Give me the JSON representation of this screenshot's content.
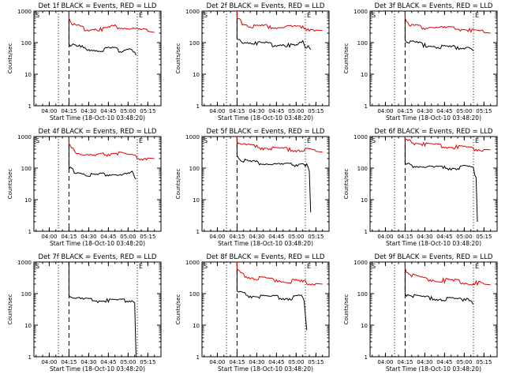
{
  "figure": {
    "xaxis_label": "Start Time (18-Oct-10 03:48:20)",
    "yaxis_label": "Counts/sec",
    "x_tick_labels": [
      "04:00",
      "04:15",
      "04:30",
      "04:45",
      "05:00",
      "05:15"
    ],
    "y_tick_labels": [
      "1",
      "10",
      "100",
      "1000"
    ],
    "marker_start": "S",
    "marker_end": "E",
    "colors": {
      "events": "#000000",
      "lld": "#e00000",
      "axes": "#000000"
    }
  },
  "chart_data": [
    {
      "type": "line",
      "title": "Det 1f BLACK = Events, RED = LLD",
      "ylog": true,
      "ylim": [
        1,
        1000
      ],
      "xlim": [
        "03:48:20",
        "05:25:00"
      ],
      "dotted_lines_x": [
        "04:07",
        "05:07"
      ],
      "dashed_line_x": "04:15",
      "series": [
        {
          "name": "Events",
          "color": "#000000",
          "x": [
            "04:15",
            "04:15",
            "04:16",
            "04:20",
            "04:25",
            "04:30",
            "04:35",
            "04:40",
            "04:45",
            "04:50",
            "04:55",
            "05:00",
            "05:03",
            "05:05",
            "05:06"
          ],
          "y": [
            1000,
            90,
            85,
            78,
            70,
            65,
            60,
            58,
            62,
            60,
            58,
            65,
            70,
            50,
            40
          ]
        },
        {
          "name": "LLD",
          "color": "#e00000",
          "x": [
            "04:15",
            "04:15",
            "04:16",
            "04:18",
            "04:20",
            "04:25",
            "04:30",
            "04:35",
            "04:40",
            "04:45",
            "04:50",
            "04:55",
            "05:00",
            "05:05",
            "05:10",
            "05:15",
            "05:20"
          ],
          "y": [
            1000,
            600,
            500,
            400,
            330,
            290,
            260,
            280,
            270,
            300,
            320,
            300,
            280,
            270,
            250,
            230,
            210
          ]
        }
      ]
    },
    {
      "type": "line",
      "title": "Det 2f BLACK = Events, RED = LLD",
      "ylog": true,
      "ylim": [
        1,
        1000
      ],
      "xlim": [
        "03:48:20",
        "05:25:00"
      ],
      "dotted_lines_x": [
        "04:07",
        "05:07"
      ],
      "dashed_line_x": "04:15",
      "series": [
        {
          "name": "Events",
          "color": "#000000",
          "x": [
            "04:15",
            "04:15",
            "04:16",
            "04:20",
            "04:25",
            "04:30",
            "04:35",
            "04:40",
            "04:45",
            "04:50",
            "04:55",
            "05:00",
            "05:05",
            "05:07",
            "05:09",
            "05:11"
          ],
          "y": [
            1000,
            130,
            125,
            110,
            105,
            95,
            90,
            88,
            85,
            90,
            85,
            80,
            100,
            70,
            80,
            60
          ]
        },
        {
          "name": "LLD",
          "color": "#e00000",
          "x": [
            "04:15",
            "04:15",
            "04:16",
            "04:18",
            "04:20",
            "04:25",
            "04:30",
            "04:35",
            "04:40",
            "04:45",
            "04:50",
            "04:55",
            "05:00",
            "05:05",
            "05:10",
            "05:15",
            "05:20"
          ],
          "y": [
            1000,
            600,
            520,
            450,
            400,
            350,
            330,
            340,
            320,
            300,
            310,
            320,
            300,
            290,
            270,
            250,
            240
          ]
        }
      ]
    },
    {
      "type": "line",
      "title": "Det 3f BLACK = Events, RED = LLD",
      "ylog": true,
      "ylim": [
        1,
        1000
      ],
      "xlim": [
        "03:48:20",
        "05:25:00"
      ],
      "dotted_lines_x": [
        "04:07",
        "05:07"
      ],
      "dashed_line_x": "04:15",
      "series": [
        {
          "name": "Events",
          "color": "#000000",
          "x": [
            "04:15",
            "04:15",
            "04:16",
            "04:20",
            "04:25",
            "04:30",
            "04:35",
            "04:40",
            "04:45",
            "04:50",
            "04:55",
            "05:00",
            "05:03",
            "05:05",
            "05:07"
          ],
          "y": [
            1000,
            120,
            115,
            100,
            90,
            85,
            80,
            78,
            75,
            72,
            70,
            68,
            75,
            65,
            55
          ]
        },
        {
          "name": "LLD",
          "color": "#e00000",
          "x": [
            "04:15",
            "04:15",
            "04:16",
            "04:18",
            "04:20",
            "04:25",
            "04:30",
            "04:35",
            "04:40",
            "04:45",
            "04:50",
            "04:55",
            "05:00",
            "05:05",
            "05:10",
            "05:15",
            "05:20"
          ],
          "y": [
            1000,
            600,
            500,
            420,
            360,
            320,
            300,
            310,
            300,
            290,
            280,
            270,
            260,
            240,
            220,
            210,
            200
          ]
        }
      ]
    },
    {
      "type": "line",
      "title": "Det 4f BLACK = Events, RED = LLD",
      "ylog": true,
      "ylim": [
        1,
        1000
      ],
      "xlim": [
        "03:48:20",
        "05:25:00"
      ],
      "dotted_lines_x": [
        "04:07",
        "05:07"
      ],
      "dashed_line_x": "04:15",
      "series": [
        {
          "name": "Events",
          "color": "#000000",
          "x": [
            "04:15",
            "04:15",
            "04:16",
            "04:20",
            "04:25",
            "04:30",
            "04:35",
            "04:40",
            "04:45",
            "04:50",
            "04:55",
            "05:00",
            "05:03",
            "05:05",
            "05:06"
          ],
          "y": [
            1000,
            95,
            90,
            80,
            70,
            65,
            60,
            62,
            65,
            63,
            60,
            65,
            70,
            50,
            45
          ]
        },
        {
          "name": "LLD",
          "color": "#e00000",
          "x": [
            "04:15",
            "04:15",
            "04:16",
            "04:18",
            "04:20",
            "04:25",
            "04:30",
            "04:35",
            "04:40",
            "04:45",
            "04:50",
            "04:55",
            "05:00",
            "05:05",
            "05:10",
            "05:15",
            "05:20"
          ],
          "y": [
            1000,
            600,
            480,
            380,
            320,
            270,
            250,
            240,
            260,
            280,
            300,
            280,
            250,
            220,
            200,
            210,
            200
          ]
        }
      ]
    },
    {
      "type": "line",
      "title": "Det 5f BLACK = Events, RED = LLD",
      "ylog": true,
      "ylim": [
        1,
        1000
      ],
      "xlim": [
        "03:48:20",
        "05:25:00"
      ],
      "dotted_lines_x": [
        "04:07",
        "05:07"
      ],
      "dashed_line_x": "04:15",
      "series": [
        {
          "name": "Events",
          "color": "#000000",
          "x": [
            "04:15",
            "04:15",
            "04:16",
            "04:20",
            "04:25",
            "04:30",
            "04:35",
            "04:40",
            "04:45",
            "04:50",
            "04:55",
            "05:00",
            "05:05",
            "05:08",
            "05:10",
            "05:11"
          ],
          "y": [
            1000,
            250,
            220,
            180,
            160,
            150,
            140,
            135,
            130,
            128,
            125,
            130,
            140,
            120,
            80,
            4
          ]
        },
        {
          "name": "LLD",
          "color": "#e00000",
          "x": [
            "04:15",
            "04:15",
            "04:16",
            "04:18",
            "04:20",
            "04:25",
            "04:30",
            "04:35",
            "04:40",
            "04:45",
            "04:50",
            "04:55",
            "05:00",
            "05:05",
            "05:10",
            "05:15",
            "05:20"
          ],
          "y": [
            1000,
            700,
            650,
            600,
            550,
            500,
            460,
            440,
            420,
            400,
            390,
            380,
            370,
            380,
            360,
            340,
            320
          ]
        }
      ]
    },
    {
      "type": "line",
      "title": "Det 6f BLACK = Events, RED = LLD",
      "ylog": true,
      "ylim": [
        1,
        1000
      ],
      "xlim": [
        "03:48:20",
        "05:25:00"
      ],
      "dotted_lines_x": [
        "04:07",
        "05:07"
      ],
      "dashed_line_x": "04:15",
      "series": [
        {
          "name": "Events",
          "color": "#000000",
          "x": [
            "04:15",
            "04:15",
            "04:16",
            "04:20",
            "04:25",
            "04:30",
            "04:35",
            "04:40",
            "04:45",
            "04:50",
            "04:55",
            "05:00",
            "05:05",
            "05:07",
            "05:09",
            "05:10"
          ],
          "y": [
            1000,
            140,
            130,
            120,
            115,
            110,
            105,
            102,
            100,
            100,
            98,
            110,
            100,
            90,
            50,
            2
          ]
        },
        {
          "name": "LLD",
          "color": "#e00000",
          "x": [
            "04:15",
            "04:15",
            "04:16",
            "04:18",
            "04:20",
            "04:25",
            "04:30",
            "04:35",
            "04:40",
            "04:45",
            "04:50",
            "04:55",
            "05:00",
            "05:05",
            "05:10",
            "05:15",
            "05:20"
          ],
          "y": [
            1000,
            800,
            750,
            700,
            650,
            600,
            560,
            530,
            500,
            480,
            460,
            450,
            430,
            420,
            400,
            390,
            380
          ]
        }
      ]
    },
    {
      "type": "line",
      "title": "Det 7f BLACK = Events, RED = LLD",
      "ylog": true,
      "ylim": [
        1,
        1000
      ],
      "xlim": [
        "03:48:20",
        "05:25:00"
      ],
      "dotted_lines_x": [
        "04:07",
        "05:07"
      ],
      "dashed_line_x": "04:15",
      "series": [
        {
          "name": "Events",
          "color": "#000000",
          "x": [
            "04:15",
            "04:15",
            "04:16",
            "04:20",
            "04:25",
            "04:30",
            "04:35",
            "04:40",
            "04:45",
            "04:50",
            "04:55",
            "05:00",
            "05:03",
            "05:05",
            "05:06"
          ],
          "y": [
            1000,
            85,
            80,
            72,
            66,
            62,
            60,
            58,
            60,
            58,
            57,
            60,
            62,
            50,
            1
          ]
        }
      ]
    },
    {
      "type": "line",
      "title": "Det 8f BLACK = Events, RED = LLD",
      "ylog": true,
      "ylim": [
        1,
        1000
      ],
      "xlim": [
        "03:48:20",
        "05:25:00"
      ],
      "dotted_lines_x": [
        "04:07",
        "05:07"
      ],
      "dashed_line_x": "04:15",
      "series": [
        {
          "name": "Events",
          "color": "#000000",
          "x": [
            "04:15",
            "04:15",
            "04:16",
            "04:20",
            "04:25",
            "04:30",
            "04:35",
            "04:40",
            "04:45",
            "04:50",
            "04:55",
            "05:00",
            "05:04",
            "05:06",
            "05:08"
          ],
          "y": [
            1000,
            120,
            110,
            95,
            85,
            80,
            78,
            75,
            75,
            72,
            70,
            75,
            80,
            60,
            7
          ]
        },
        {
          "name": "LLD",
          "color": "#e00000",
          "x": [
            "04:15",
            "04:15",
            "04:16",
            "04:18",
            "04:20",
            "04:25",
            "04:30",
            "04:35",
            "04:40",
            "04:45",
            "04:50",
            "04:55",
            "05:00",
            "05:05",
            "05:10",
            "05:15",
            "05:20"
          ],
          "y": [
            1000,
            600,
            500,
            420,
            370,
            330,
            300,
            290,
            280,
            270,
            260,
            250,
            240,
            230,
            220,
            210,
            200
          ]
        }
      ]
    },
    {
      "type": "line",
      "title": "Det 9f BLACK = Events, RED = LLD",
      "ylog": true,
      "ylim": [
        1,
        1000
      ],
      "xlim": [
        "03:48:20",
        "05:25:00"
      ],
      "dotted_lines_x": [
        "04:07",
        "05:07"
      ],
      "dashed_line_x": "04:15",
      "series": [
        {
          "name": "Events",
          "color": "#000000",
          "x": [
            "04:15",
            "04:15",
            "04:16",
            "04:20",
            "04:25",
            "04:30",
            "04:35",
            "04:40",
            "04:45",
            "04:50",
            "04:55",
            "05:00",
            "05:03",
            "05:05",
            "05:07"
          ],
          "y": [
            1000,
            100,
            95,
            85,
            78,
            72,
            70,
            68,
            66,
            65,
            63,
            68,
            75,
            60,
            45
          ]
        },
        {
          "name": "LLD",
          "color": "#e00000",
          "x": [
            "04:15",
            "04:15",
            "04:16",
            "04:18",
            "04:20",
            "04:25",
            "04:30",
            "04:35",
            "04:40",
            "04:45",
            "04:50",
            "04:55",
            "05:00",
            "05:05",
            "05:10",
            "05:15",
            "05:20"
          ],
          "y": [
            1000,
            650,
            520,
            430,
            370,
            320,
            290,
            280,
            270,
            260,
            250,
            240,
            230,
            220,
            210,
            200,
            190
          ]
        }
      ]
    }
  ]
}
